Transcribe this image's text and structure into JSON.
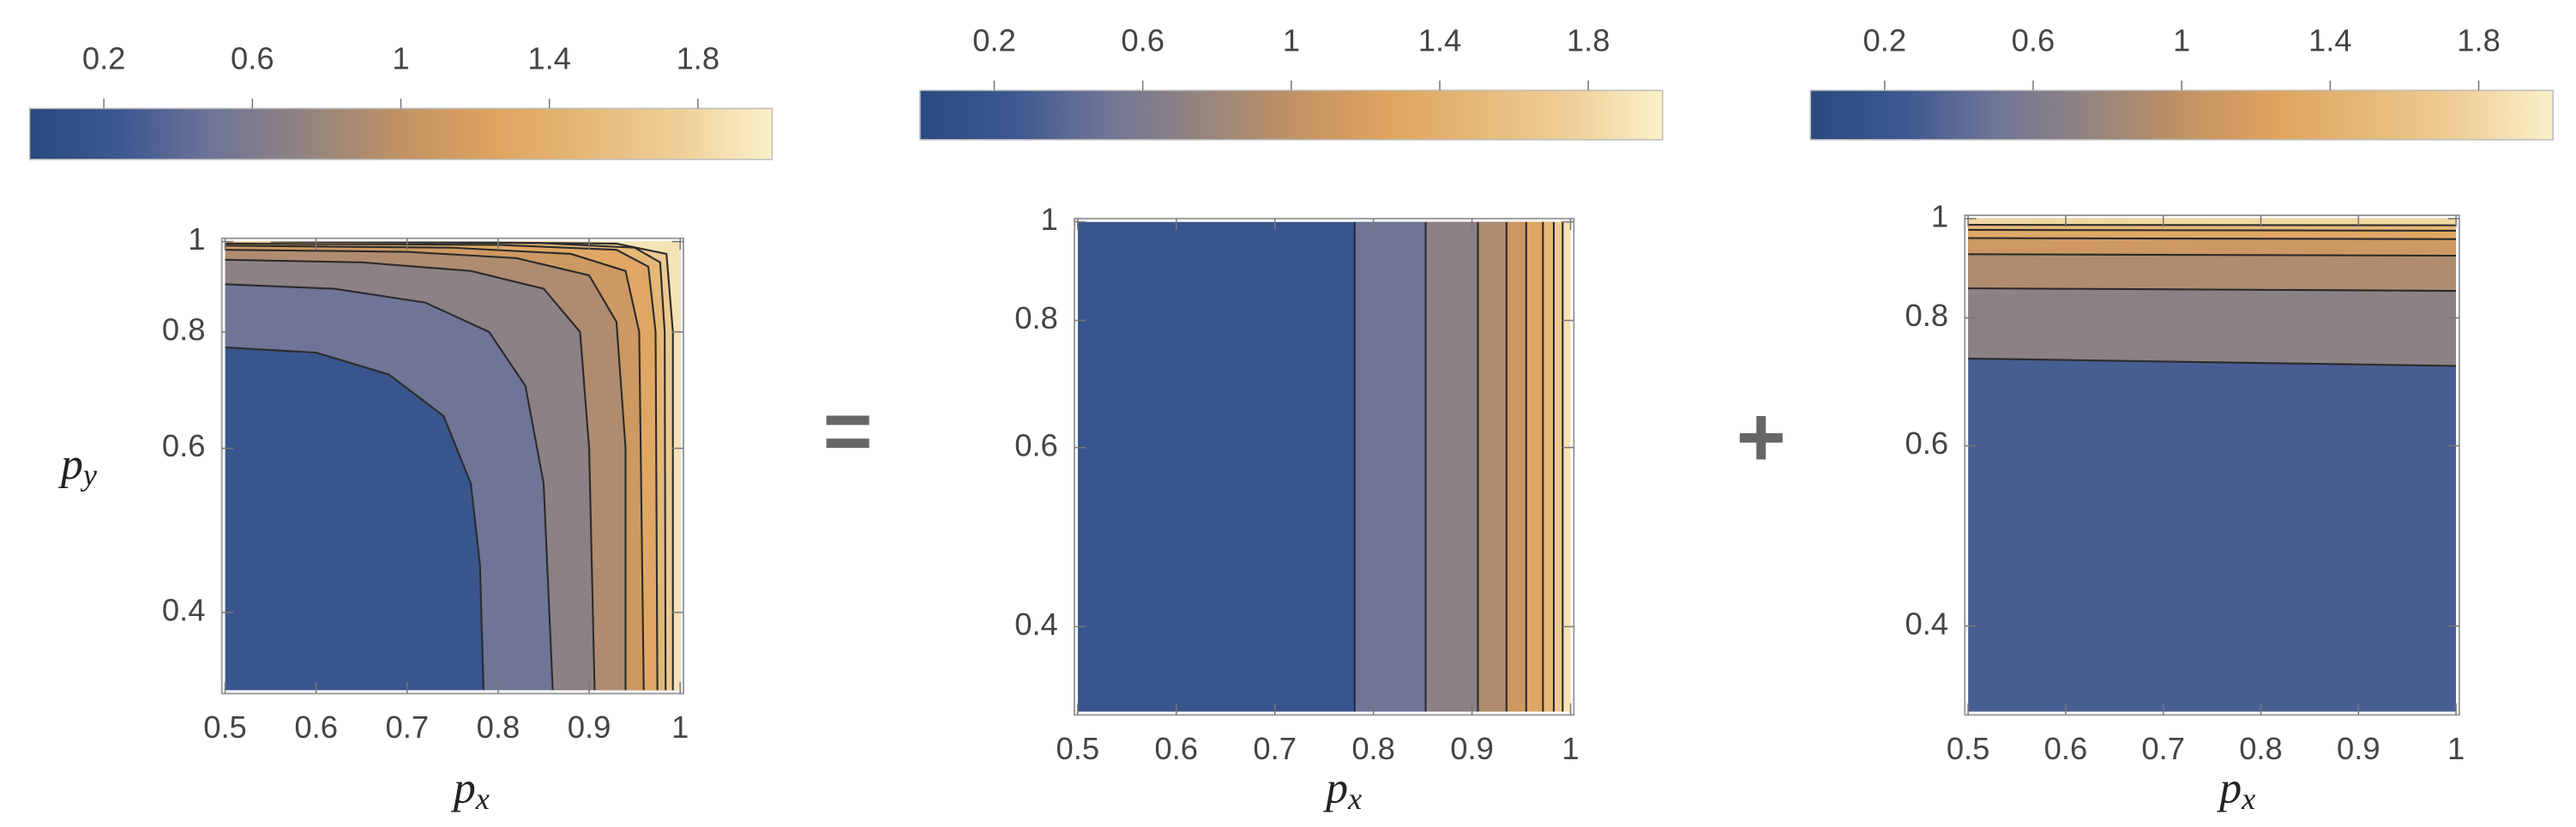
{
  "chart_data": [
    {
      "type": "contour",
      "colorbar": {
        "lim": [
          0,
          2
        ],
        "ticks": [
          0.2,
          0.6,
          1.0,
          1.4,
          1.8
        ]
      },
      "colormap": [
        "#2a4a7f",
        "#3d5891",
        "#6f7597",
        "#938480",
        "#c19163",
        "#dea35f",
        "#e6b877",
        "#efcf98",
        "#fbf1c9"
      ],
      "levels": [
        0.4,
        0.6,
        0.8,
        1.0,
        1.2,
        1.4,
        1.6,
        1.8
      ],
      "contours": [
        {
          "x": [
            0.5,
            0.6,
            0.68,
            0.74,
            0.77,
            0.78,
            0.784
          ],
          "y": [
            0.77,
            0.76,
            0.72,
            0.65,
            0.55,
            0.45,
            0.33
          ]
        },
        {
          "x": [
            0.5,
            0.62,
            0.72,
            0.79,
            0.83,
            0.85,
            0.86
          ],
          "y": [
            0.9,
            0.89,
            0.86,
            0.8,
            0.7,
            0.55,
            0.33
          ]
        },
        {
          "x": [
            0.5,
            0.65,
            0.77,
            0.85,
            0.89,
            0.9,
            0.906
          ],
          "y": [
            0.956,
            0.95,
            0.93,
            0.89,
            0.8,
            0.6,
            0.33
          ]
        },
        {
          "x": [
            0.5,
            0.7,
            0.82,
            0.9,
            0.93,
            0.94,
            0.94
          ],
          "y": [
            0.98,
            0.975,
            0.96,
            0.92,
            0.82,
            0.6,
            0.33
          ]
        },
        {
          "x": [
            0.5,
            0.75,
            0.88,
            0.94,
            0.955,
            0.96
          ],
          "y": [
            0.99,
            0.985,
            0.97,
            0.93,
            0.8,
            0.33
          ]
        },
        {
          "x": [
            0.5,
            0.8,
            0.93,
            0.965,
            0.973,
            0.975
          ],
          "y": [
            0.995,
            0.992,
            0.98,
            0.94,
            0.8,
            0.33
          ]
        },
        {
          "x": [
            0.55,
            0.85,
            0.95,
            0.978,
            0.983,
            0.984
          ],
          "y": [
            1.0,
            0.996,
            0.985,
            0.95,
            0.8,
            0.33
          ]
        },
        {
          "x": [
            0.7,
            0.93,
            0.985,
            0.992,
            0.992
          ],
          "y": [
            1.0,
            0.995,
            0.97,
            0.8,
            0.33
          ]
        }
      ],
      "xlim": [
        0.5,
        1.0
      ],
      "xticks": [
        0.5,
        0.6,
        0.7,
        0.8,
        0.9,
        1.0
      ],
      "ylim": [
        0.33,
        1.0
      ],
      "yticks": [
        0.4,
        0.6,
        0.8,
        1.0
      ],
      "yscale": "log",
      "xlabel": "p",
      "xlabel_subscript": "x",
      "ylabel": "p",
      "ylabel_subscript": "y"
    },
    {
      "type": "contour",
      "colorbar": {
        "lim": [
          0,
          2
        ],
        "ticks": [
          0.2,
          0.6,
          1.0,
          1.4,
          1.8
        ]
      },
      "colormap": [
        "#2a4a7f",
        "#3d5891",
        "#6f7597",
        "#938480",
        "#c19163",
        "#dea35f",
        "#e6b877",
        "#efcf98",
        "#fbf1c9"
      ],
      "levels": [
        0.4,
        0.6,
        0.8,
        1.0,
        1.2,
        1.4,
        1.6,
        1.8
      ],
      "contours": [
        {
          "x": [
            0.781,
            0.781
          ],
          "y": [
            1.0,
            0.33
          ]
        },
        {
          "x": [
            0.853,
            0.853
          ],
          "y": [
            1.0,
            0.33
          ]
        },
        {
          "x": [
            0.906,
            0.906
          ],
          "y": [
            1.0,
            0.33
          ]
        },
        {
          "x": [
            0.935,
            0.935
          ],
          "y": [
            1.0,
            0.33
          ]
        },
        {
          "x": [
            0.955,
            0.955
          ],
          "y": [
            1.0,
            0.33
          ]
        },
        {
          "x": [
            0.972,
            0.972
          ],
          "y": [
            1.0,
            0.33
          ]
        },
        {
          "x": [
            0.983,
            0.983
          ],
          "y": [
            1.0,
            0.33
          ]
        },
        {
          "x": [
            0.992,
            0.992
          ],
          "y": [
            1.0,
            0.33
          ]
        }
      ],
      "xlim": [
        0.5,
        1.0
      ],
      "xticks": [
        0.5,
        0.6,
        0.7,
        0.8,
        0.9,
        1.0
      ],
      "ylim": [
        0.33,
        1.0
      ],
      "yticks": [
        0.4,
        0.6,
        0.8,
        1.0
      ],
      "yscale": "log",
      "xlabel": "p",
      "xlabel_subscript": "x"
    },
    {
      "type": "contour",
      "colorbar": {
        "lim": [
          0,
          2
        ],
        "ticks": [
          0.2,
          0.6,
          1.0,
          1.4,
          1.8
        ]
      },
      "colormap": [
        "#2a4a7f",
        "#3d5891",
        "#6f7597",
        "#938480",
        "#c19163",
        "#dea35f",
        "#e6b877",
        "#efcf98",
        "#fbf1c9"
      ],
      "levels": [
        0.6,
        0.8,
        1.0,
        1.2,
        1.4,
        1.6
      ],
      "contours": [
        {
          "x": [
            0.5,
            1.0
          ],
          "y": [
            0.73,
            0.718
          ]
        },
        {
          "x": [
            0.5,
            1.0
          ],
          "y": [
            0.855,
            0.85
          ]
        },
        {
          "x": [
            0.5,
            1.0
          ],
          "y": [
            0.923,
            0.92
          ]
        },
        {
          "x": [
            0.5,
            1.0
          ],
          "y": [
            0.957,
            0.955
          ]
        },
        {
          "x": [
            0.5,
            1.0
          ],
          "y": [
            0.975,
            0.973
          ]
        },
        {
          "x": [
            0.5,
            1.0
          ],
          "y": [
            0.986,
            0.985
          ]
        }
      ],
      "xlim": [
        0.5,
        1.0
      ],
      "xticks": [
        0.5,
        0.6,
        0.7,
        0.8,
        0.9,
        1.0
      ],
      "ylim": [
        0.33,
        1.0
      ],
      "yticks": [
        0.4,
        0.6,
        0.8,
        1.0
      ],
      "yscale": "log",
      "xlabel": "p",
      "xlabel_subscript": "x"
    }
  ],
  "operators": [
    "=",
    "+"
  ]
}
